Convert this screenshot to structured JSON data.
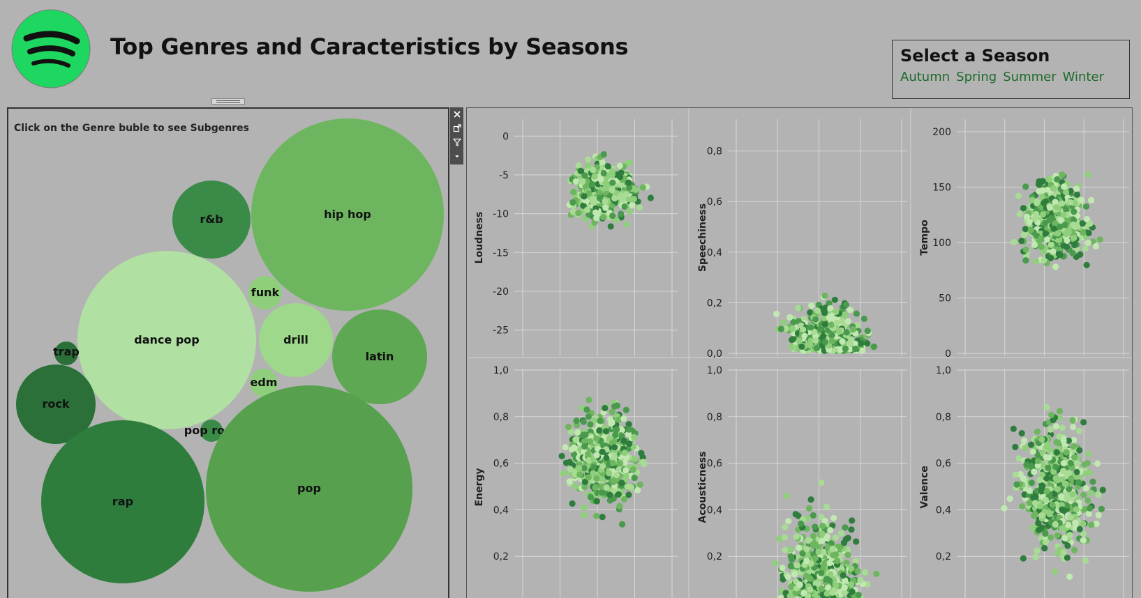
{
  "header": {
    "title": "Top Genres and Caracteristics by Seasons"
  },
  "logo": {
    "icon": "spotify-logo-icon",
    "color": "#1ed760"
  },
  "season_filter": {
    "heading": "Select a Season",
    "options": [
      "Autumn",
      "Spring",
      "Summer",
      "Winter"
    ],
    "color": "#1e6b2a"
  },
  "bubble_chart": {
    "instruction": "Click on the Genre buble to see Subgenres",
    "genres": [
      {
        "label": "hip hop",
        "color": "#6db65f"
      },
      {
        "label": "r&b",
        "color": "#3a8a48"
      },
      {
        "label": "dance pop",
        "color": "#b0e0a2"
      },
      {
        "label": "funk",
        "color": "#8fcf7c"
      },
      {
        "label": "drill",
        "color": "#9ed88b"
      },
      {
        "label": "latin",
        "color": "#5ea753"
      },
      {
        "label": "edm",
        "color": "#8fcf7c"
      },
      {
        "label": "trap",
        "color": "#2a7038"
      },
      {
        "label": "rock",
        "color": "#2a7038"
      },
      {
        "label": "pop rock",
        "color": "#3a8a48"
      },
      {
        "label": "rap",
        "color": "#2e7d3d"
      },
      {
        "label": "pop",
        "color": "#56a04e"
      }
    ]
  },
  "toolbar": {
    "icons": [
      "close-icon",
      "popout-icon",
      "filter-icon",
      "dropdown-icon"
    ]
  },
  "chart_data": [
    {
      "type": "scatter",
      "ylabel": "Loudness",
      "ylim": [
        -28,
        2
      ],
      "yticks": [
        "0",
        "-5",
        "-10",
        "-15",
        "-20",
        "-25"
      ],
      "tickvals": [
        0,
        -5,
        -10,
        -15,
        -20,
        -25
      ],
      "xlabel": ""
    },
    {
      "type": "scatter",
      "ylabel": "Speechiness",
      "ylim": [
        0,
        0.92
      ],
      "yticks": [
        "0,8",
        "0,6",
        "0,4",
        "0,2",
        "0,0"
      ],
      "tickvals": [
        0.8,
        0.6,
        0.4,
        0.2,
        0.0
      ],
      "xlabel": ""
    },
    {
      "type": "scatter",
      "ylabel": "Tempo",
      "ylim": [
        0,
        210
      ],
      "yticks": [
        "200",
        "150",
        "100",
        "50",
        "0"
      ],
      "tickvals": [
        200,
        150,
        100,
        50,
        0
      ],
      "xlabel": ""
    },
    {
      "type": "scatter",
      "ylabel": "Energy",
      "ylim": [
        0,
        1.0
      ],
      "yticks": [
        "1,0",
        "0,8",
        "0,6",
        "0,4",
        "0,2",
        "0,0"
      ],
      "tickvals": [
        1.0,
        0.8,
        0.6,
        0.4,
        0.2,
        0.0
      ],
      "xlabel": ""
    },
    {
      "type": "scatter",
      "ylabel": "Acousticness",
      "ylim": [
        0,
        1.0
      ],
      "yticks": [
        "1,0",
        "0,8",
        "0,6",
        "0,4",
        "0,2",
        "0,0"
      ],
      "tickvals": [
        1.0,
        0.8,
        0.6,
        0.4,
        0.2,
        0.0
      ],
      "xlabel": ""
    },
    {
      "type": "scatter",
      "ylabel": "Valence",
      "ylim": [
        0,
        1.0
      ],
      "yticks": [
        "1,0",
        "0,8",
        "0,6",
        "0,4",
        "0,2",
        "0,0"
      ],
      "tickvals": [
        1.0,
        0.8,
        0.6,
        0.4,
        0.2,
        0.0
      ],
      "xlabel": ""
    }
  ],
  "point_colors": [
    "#2e7d3d",
    "#4a9a4e",
    "#6db65f",
    "#8fcf7c",
    "#a8dc95",
    "#c2e8b2"
  ]
}
